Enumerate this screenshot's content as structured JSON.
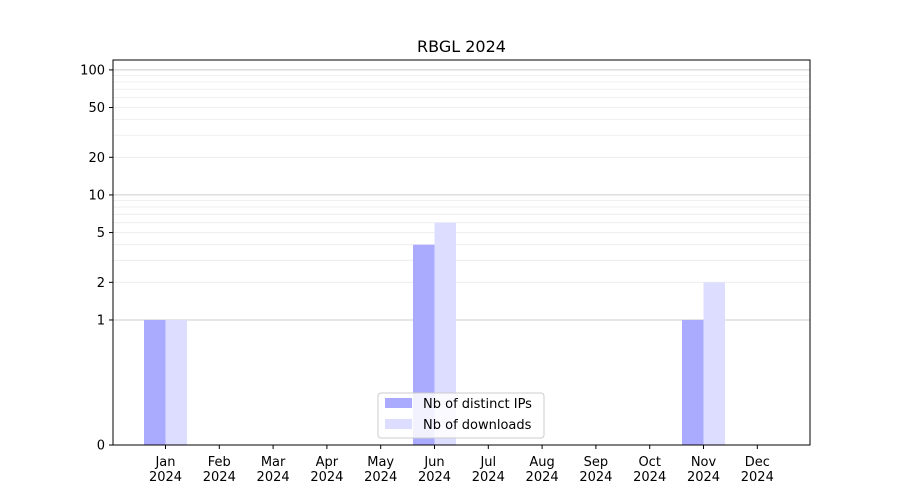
{
  "chart_data": {
    "type": "bar",
    "title": "RBGL 2024",
    "xlabel": "",
    "ylabel": "",
    "y_scale": "symlog",
    "ylim": [
      0,
      120
    ],
    "y_ticks": [
      0,
      1,
      2,
      5,
      10,
      20,
      50,
      100
    ],
    "y_tick_labels": [
      "0",
      "1",
      "2",
      "5",
      "10",
      "20",
      "50",
      "100"
    ],
    "grid": "horizontal",
    "categories": [
      "Jan\n2024",
      "Feb\n2024",
      "Mar\n2024",
      "Apr\n2024",
      "May\n2024",
      "Jun\n2024",
      "Jul\n2024",
      "Aug\n2024",
      "Sep\n2024",
      "Oct\n2024",
      "Nov\n2024",
      "Dec\n2024"
    ],
    "series": [
      {
        "name": "Nb of distinct IPs",
        "color": "#aaaaff",
        "values": [
          1,
          0,
          0,
          0,
          0,
          4,
          0,
          0,
          0,
          0,
          1,
          0
        ]
      },
      {
        "name": "Nb of downloads",
        "color": "#ddddff",
        "values": [
          1,
          0,
          0,
          0,
          0,
          6,
          0,
          0,
          0,
          0,
          2,
          0
        ]
      }
    ],
    "legend": {
      "placement": "lower-center"
    }
  }
}
